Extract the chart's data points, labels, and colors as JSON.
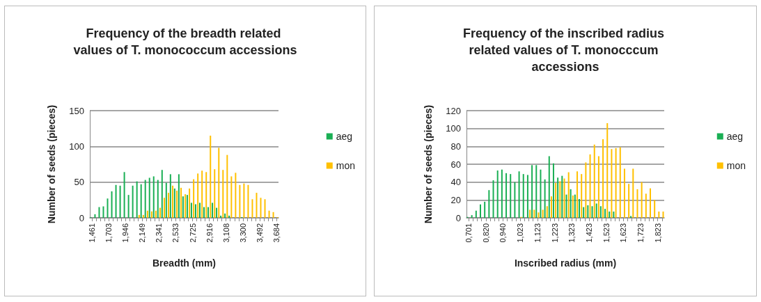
{
  "chart_data": [
    {
      "type": "bar",
      "title": "Frequency of the breadth related values of T. monococcum accessions",
      "xlabel": "Breadth (mm)",
      "ylabel": "Number of seeds (pieces)",
      "categories": [
        "1,461",
        null,
        null,
        null,
        "1,703",
        null,
        null,
        null,
        "1,946",
        null,
        null,
        null,
        "2,149",
        null,
        null,
        null,
        "2,341",
        null,
        null,
        null,
        "2,533",
        null,
        null,
        null,
        "2,725",
        null,
        null,
        null,
        "2,916",
        null,
        null,
        null,
        "3,108",
        null,
        null,
        null,
        "3,300",
        null,
        null,
        null,
        "3,492",
        null,
        null,
        null,
        "3,684"
      ],
      "series": [
        {
          "name": "aeg",
          "color": "#1aaf54",
          "values": [
            1,
            5,
            15,
            16,
            27,
            37,
            46,
            45,
            64,
            32,
            45,
            51,
            47,
            53,
            56,
            58,
            53,
            67,
            49,
            61,
            41,
            61,
            30,
            32,
            21,
            19,
            21,
            15,
            15,
            21,
            14,
            3,
            6,
            3,
            0,
            0,
            1,
            0,
            0,
            0,
            0,
            0,
            0,
            0,
            0
          ]
        },
        {
          "name": "mon",
          "color": "#ffc000",
          "values": [
            0,
            0,
            0,
            0,
            0,
            0,
            0,
            0,
            0,
            0,
            0,
            4,
            4,
            10,
            9,
            10,
            14,
            28,
            35,
            45,
            38,
            42,
            33,
            41,
            54,
            62,
            66,
            64,
            115,
            68,
            98,
            67,
            88,
            58,
            63,
            46,
            48,
            46,
            26,
            35,
            28,
            26,
            10,
            8,
            1
          ]
        }
      ],
      "ylim": [
        0,
        150
      ],
      "yticks": [
        0,
        50,
        100,
        150
      ],
      "grid": "y",
      "legend": "right"
    },
    {
      "type": "bar",
      "title": "Frequency of the inscribed radius related values of T. monocccum accessions",
      "xlabel": "Inscribed radius (mm)",
      "ylabel": "Number of seeds (pieces)",
      "categories": [
        "0,701",
        null,
        null,
        null,
        "0,820",
        null,
        null,
        null,
        "0,940",
        null,
        null,
        null,
        "1,023",
        null,
        null,
        null,
        "1,123",
        null,
        null,
        null,
        "1,223",
        null,
        null,
        null,
        "1,323",
        null,
        null,
        null,
        "1,423",
        null,
        null,
        null,
        "1,523",
        null,
        null,
        null,
        "1,623",
        null,
        null,
        null,
        "1,723",
        null,
        null,
        null,
        "1,823",
        null
      ],
      "series": [
        {
          "name": "aeg",
          "color": "#1aaf54",
          "values": [
            1,
            3,
            8,
            15,
            18,
            31,
            42,
            53,
            54,
            50,
            49,
            40,
            52,
            49,
            48,
            59,
            59,
            54,
            43,
            69,
            61,
            45,
            47,
            26,
            32,
            26,
            21,
            12,
            14,
            13,
            16,
            13,
            10,
            7,
            7,
            0,
            0,
            0,
            2,
            0,
            0,
            0,
            0,
            0,
            0,
            0
          ]
        },
        {
          "name": "mon",
          "color": "#ffc000",
          "values": [
            0,
            0,
            0,
            0,
            0,
            0,
            0,
            0,
            0,
            0,
            0,
            0,
            1,
            0,
            9,
            9,
            6,
            9,
            13,
            24,
            39,
            41,
            44,
            51,
            25,
            52,
            49,
            62,
            71,
            82,
            69,
            88,
            106,
            77,
            78,
            79,
            55,
            38,
            55,
            32,
            40,
            27,
            33,
            20,
            7,
            7
          ]
        }
      ],
      "ylim": [
        0,
        120
      ],
      "yticks": [
        0,
        20,
        40,
        60,
        80,
        100,
        120
      ],
      "grid": "y",
      "legend": "right"
    }
  ]
}
